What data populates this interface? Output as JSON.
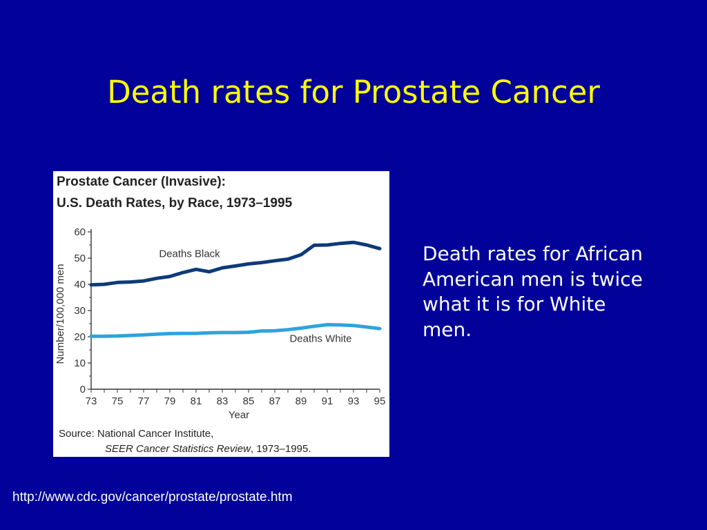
{
  "slide": {
    "title": "Death rates for Prostate Cancer",
    "side_text": "Death rates for African American men is twice what it is for White men.",
    "url": "http://www.cdc.gov/cancer/prostate/prostate.htm"
  },
  "colors": {
    "background": "#02029a",
    "title": "#ffff00",
    "text": "#ffffff",
    "deaths_black": "#0d3a7a",
    "deaths_white": "#2fa3dc"
  },
  "chart_data": {
    "type": "line",
    "title": "Prostate Cancer (Invasive):",
    "subtitle": "U.S. Death Rates, by Race, 1973–1995",
    "xlabel": "Year",
    "ylabel": "Number/100,000 men",
    "xlim": [
      1973,
      1995
    ],
    "ylim": [
      0,
      60
    ],
    "x_tick_labels": [
      "73",
      "75",
      "77",
      "79",
      "81",
      "83",
      "85",
      "87",
      "89",
      "91",
      "93",
      "95"
    ],
    "y_tick_labels": [
      "0",
      "10",
      "20",
      "30",
      "40",
      "50",
      "60"
    ],
    "x": [
      1973,
      1974,
      1975,
      1976,
      1977,
      1978,
      1979,
      1980,
      1981,
      1982,
      1983,
      1984,
      1985,
      1986,
      1987,
      1988,
      1989,
      1990,
      1991,
      1992,
      1993,
      1994,
      1995
    ],
    "series": [
      {
        "name": "Deaths Black",
        "color": "#0d3a7a",
        "values": [
          39.8,
          40.0,
          40.7,
          40.9,
          41.3,
          42.3,
          43.0,
          44.5,
          45.7,
          44.8,
          46.3,
          47.0,
          47.8,
          48.3,
          49.0,
          49.6,
          51.3,
          54.9,
          55.0,
          55.6,
          56.0,
          55.0,
          53.6
        ]
      },
      {
        "name": "Deaths White",
        "color": "#2fa3dc",
        "values": [
          20.2,
          20.2,
          20.3,
          20.5,
          20.7,
          21.0,
          21.2,
          21.3,
          21.3,
          21.5,
          21.6,
          21.6,
          21.7,
          22.2,
          22.3,
          22.7,
          23.3,
          24.0,
          24.6,
          24.5,
          24.3,
          23.7,
          23.1
        ]
      }
    ],
    "source_prefix": "Source: National Cancer Institute,",
    "source_publication": "SEER Cancer Statistics Review",
    "source_years": ", 1973–1995."
  }
}
